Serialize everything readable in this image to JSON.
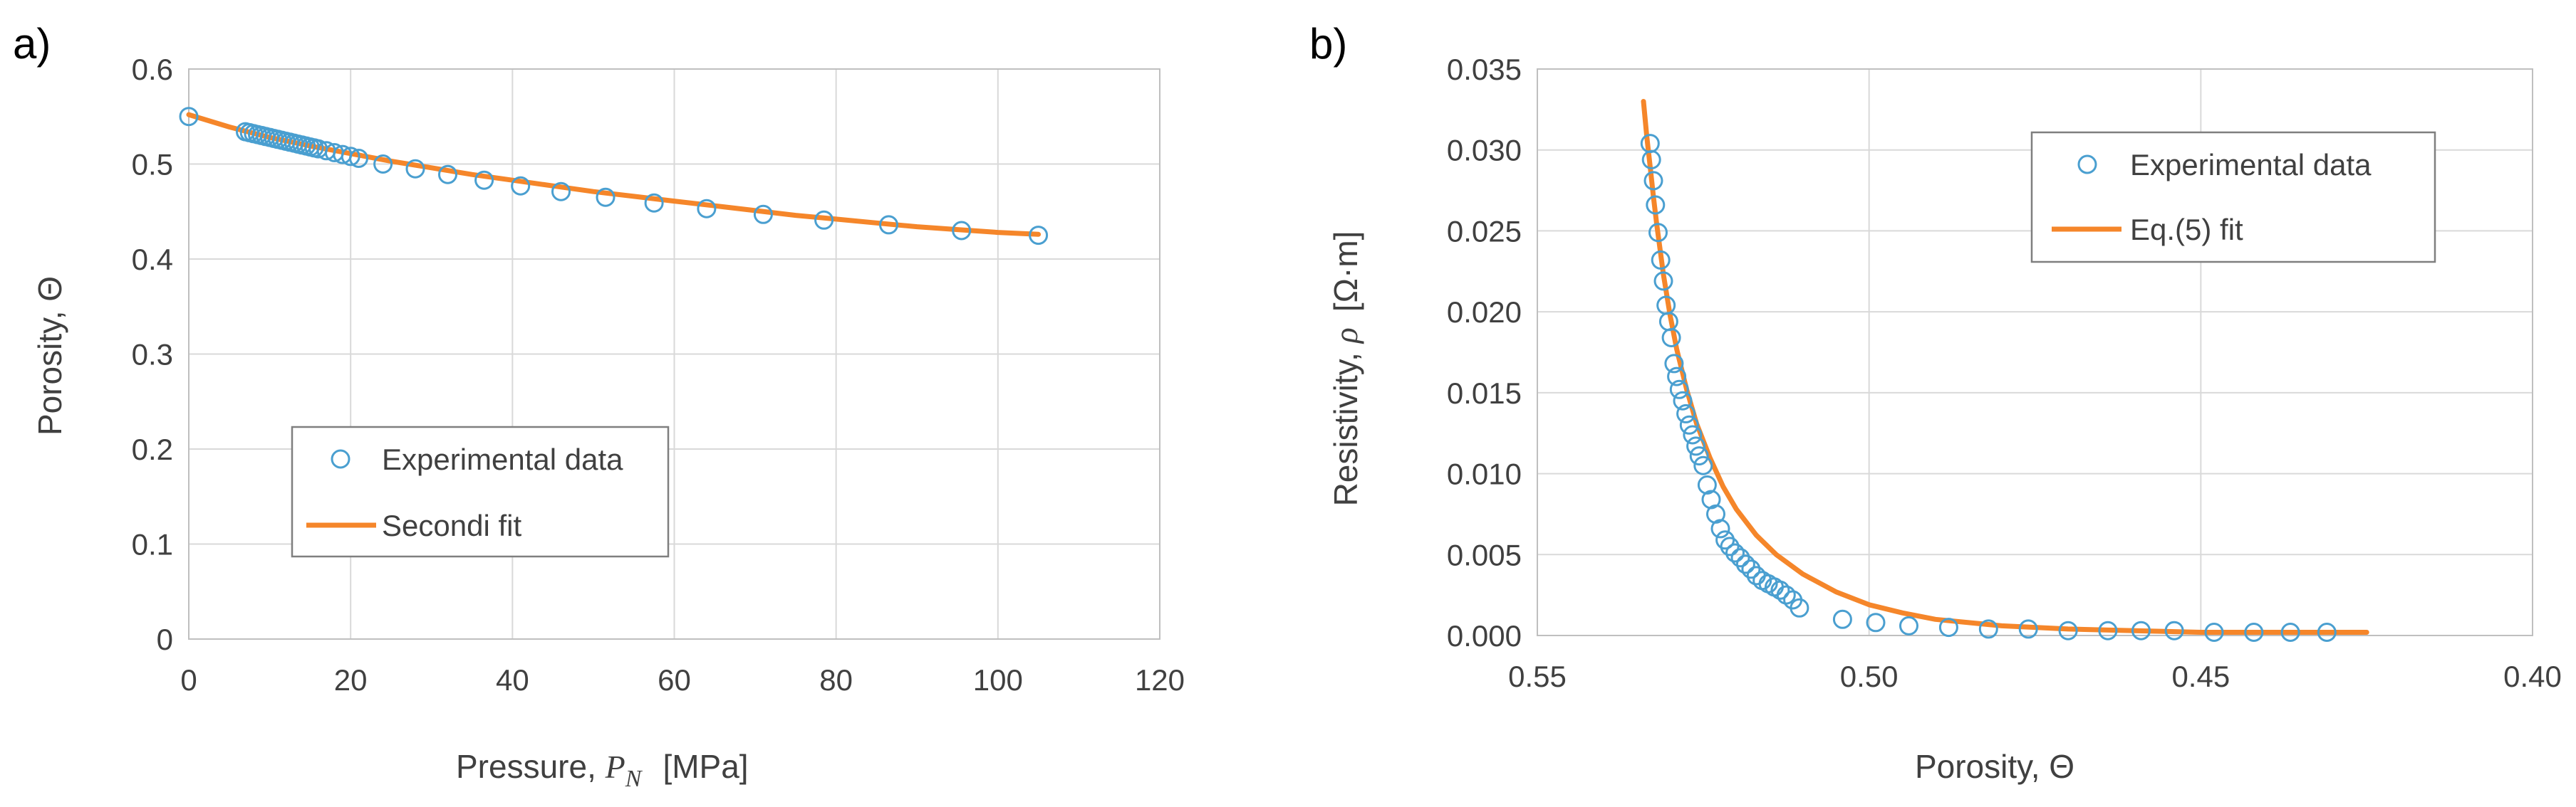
{
  "chart_data": [
    {
      "panel_label": "a)",
      "type": "scatter",
      "xlabel_prefix": "Pressure, ",
      "xlabel_symbol": "P",
      "xlabel_subscript": "N",
      "xlabel_unit": "[MPa]",
      "ylabel": "Porosity, Θ",
      "xlim": [
        0,
        120
      ],
      "ylim": [
        0,
        0.6
      ],
      "xticks": [
        0,
        20,
        40,
        60,
        80,
        100,
        120
      ],
      "xtick_labels": [
        "0",
        "20",
        "40",
        "60",
        "80",
        "100",
        "120"
      ],
      "yticks": [
        0,
        0.1,
        0.2,
        0.3,
        0.4,
        0.5,
        0.6
      ],
      "ytick_labels": [
        "0",
        "0.1",
        "0.2",
        "0.3",
        "0.4",
        "0.5",
        "0.6"
      ],
      "grid": true,
      "legend_position": "lower-left",
      "series": [
        {
          "name": "Experimental data",
          "kind": "markers",
          "color": "#4a9fd0",
          "x": [
            0,
            7,
            7.5,
            8,
            8.5,
            9,
            9.5,
            10,
            10.5,
            11,
            11.5,
            12,
            12.5,
            13,
            13.5,
            14,
            14.5,
            15,
            15.5,
            16,
            17,
            18,
            19,
            20,
            21,
            24,
            28,
            32,
            36.5,
            41,
            46,
            51.5,
            57.5,
            64,
            71,
            78.5,
            86.5,
            95.5,
            105
          ],
          "y": [
            0.55,
            0.534,
            0.533,
            0.532,
            0.531,
            0.53,
            0.529,
            0.528,
            0.527,
            0.526,
            0.525,
            0.524,
            0.523,
            0.522,
            0.521,
            0.52,
            0.519,
            0.518,
            0.517,
            0.516,
            0.514,
            0.512,
            0.51,
            0.508,
            0.506,
            0.5,
            0.495,
            0.489,
            0.483,
            0.477,
            0.471,
            0.465,
            0.459,
            0.453,
            0.447,
            0.441,
            0.436,
            0.43,
            0.425
          ]
        },
        {
          "name": "Secondi fit",
          "kind": "line",
          "color": "#f5862a",
          "x": [
            0,
            5,
            10,
            15,
            20,
            25,
            30,
            35,
            40,
            45,
            50,
            55,
            60,
            65,
            70,
            75,
            80,
            85,
            90,
            95,
            100,
            105
          ],
          "y": [
            0.552,
            0.539,
            0.528,
            0.519,
            0.511,
            0.503,
            0.496,
            0.489,
            0.483,
            0.477,
            0.471,
            0.466,
            0.461,
            0.456,
            0.451,
            0.446,
            0.442,
            0.438,
            0.434,
            0.431,
            0.428,
            0.426
          ]
        }
      ]
    },
    {
      "panel_label": "b)",
      "type": "scatter",
      "xlabel": "Porosity, Θ",
      "ylabel_prefix": "Resistivity, ",
      "ylabel_symbol": "ρ",
      "ylabel_unit": "[Ω·m]",
      "xlim": [
        0.55,
        0.4
      ],
      "x_reversed": true,
      "ylim": [
        0,
        0.035
      ],
      "xticks": [
        0.55,
        0.5,
        0.45,
        0.4
      ],
      "xtick_labels": [
        "0.55",
        "0.50",
        "0.45",
        "0.40"
      ],
      "yticks": [
        0,
        0.005,
        0.01,
        0.015,
        0.02,
        0.025,
        0.03,
        0.035
      ],
      "ytick_labels": [
        "0.000",
        "0.005",
        "0.010",
        "0.015",
        "0.020",
        "0.025",
        "0.030",
        "0.035"
      ],
      "grid": true,
      "legend_position": "upper-right",
      "series": [
        {
          "name": "Experimental data",
          "kind": "markers",
          "color": "#4a9fd0",
          "x": [
            0.533,
            0.5328,
            0.5325,
            0.5322,
            0.5318,
            0.5314,
            0.531,
            0.5306,
            0.5302,
            0.5298,
            0.5294,
            0.529,
            0.5286,
            0.5281,
            0.5276,
            0.5271,
            0.5266,
            0.5261,
            0.5256,
            0.525,
            0.5244,
            0.5238,
            0.5231,
            0.5224,
            0.5217,
            0.521,
            0.5202,
            0.5194,
            0.5186,
            0.5178,
            0.517,
            0.5161,
            0.5152,
            0.5143,
            0.5134,
            0.5125,
            0.5115,
            0.5105,
            0.504,
            0.499,
            0.494,
            0.488,
            0.482,
            0.476,
            0.47,
            0.464,
            0.459,
            0.454,
            0.448,
            0.442,
            0.4365,
            0.431
          ],
          "y": [
            0.0304,
            0.0294,
            0.0281,
            0.0266,
            0.0249,
            0.0232,
            0.0219,
            0.0204,
            0.0194,
            0.0184,
            0.0168,
            0.016,
            0.0152,
            0.0145,
            0.0137,
            0.013,
            0.0124,
            0.0117,
            0.0111,
            0.0105,
            0.0093,
            0.0084,
            0.0075,
            0.0066,
            0.0059,
            0.0055,
            0.0051,
            0.0048,
            0.0044,
            0.0041,
            0.0037,
            0.0034,
            0.0032,
            0.003,
            0.0028,
            0.0025,
            0.0022,
            0.0017,
            0.001,
            0.0008,
            0.0006,
            0.0005,
            0.0004,
            0.0004,
            0.0003,
            0.0003,
            0.0003,
            0.0003,
            0.0002,
            0.0002,
            0.0002,
            0.0002
          ]
        },
        {
          "name": "Eq.(5) fit",
          "kind": "line",
          "color": "#f5862a",
          "x": [
            0.534,
            0.5335,
            0.533,
            0.5325,
            0.532,
            0.531,
            0.53,
            0.529,
            0.5275,
            0.526,
            0.524,
            0.522,
            0.52,
            0.517,
            0.514,
            0.51,
            0.505,
            0.5,
            0.495,
            0.49,
            0.48,
            0.47,
            0.46,
            0.45,
            0.44,
            0.43,
            0.425
          ],
          "y": [
            0.033,
            0.0308,
            0.029,
            0.0271,
            0.0254,
            0.0223,
            0.0198,
            0.0177,
            0.0152,
            0.0131,
            0.011,
            0.0092,
            0.0078,
            0.0062,
            0.005,
            0.0038,
            0.0027,
            0.0019,
            0.0014,
            0.001,
            0.0006,
            0.0004,
            0.0003,
            0.0002,
            0.0002,
            0.0002,
            0.0002
          ]
        }
      ]
    }
  ]
}
